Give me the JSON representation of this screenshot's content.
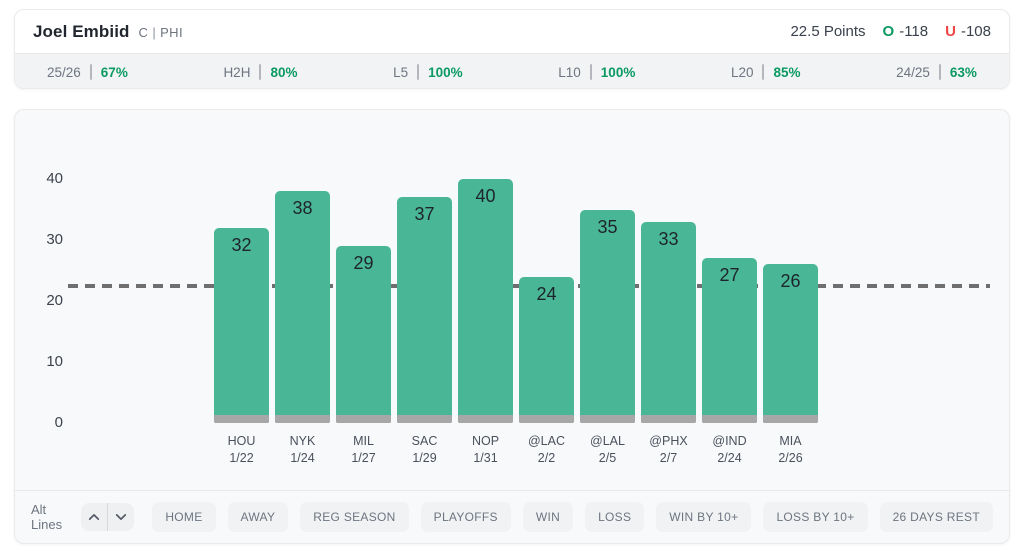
{
  "header": {
    "player_name": "Joel Embiid",
    "position": "C",
    "separator": "|",
    "team": "PHI",
    "line_label": "22.5 Points",
    "over_label": "O",
    "over_odds": "-118",
    "under_label": "U",
    "under_odds": "-108"
  },
  "stats": [
    {
      "label": "25/26",
      "value": "67%"
    },
    {
      "label": "H2H",
      "value": "80%"
    },
    {
      "label": "L5",
      "value": "100%"
    },
    {
      "label": "L10",
      "value": "100%"
    },
    {
      "label": "L20",
      "value": "85%"
    },
    {
      "label": "24/25",
      "value": "63%"
    }
  ],
  "chart_data": {
    "type": "bar",
    "title": "",
    "xlabel": "",
    "ylabel": "",
    "categories": [
      "HOU 1/22",
      "NYK 1/24",
      "MIL 1/27",
      "SAC 1/29",
      "NOP 1/31",
      "@LAC 2/2",
      "@LAL 2/5",
      "@PHX 2/7",
      "@IND 2/24",
      "MIA 2/26"
    ],
    "games": [
      {
        "opponent": "HOU",
        "date": "1/22"
      },
      {
        "opponent": "NYK",
        "date": "1/24"
      },
      {
        "opponent": "MIL",
        "date": "1/27"
      },
      {
        "opponent": "SAC",
        "date": "1/29"
      },
      {
        "opponent": "NOP",
        "date": "1/31"
      },
      {
        "opponent": "@LAC",
        "date": "2/2"
      },
      {
        "opponent": "@LAL",
        "date": "2/5"
      },
      {
        "opponent": "@PHX",
        "date": "2/7"
      },
      {
        "opponent": "@IND",
        "date": "2/24"
      },
      {
        "opponent": "MIA",
        "date": "2/26"
      }
    ],
    "values": [
      32,
      38,
      29,
      37,
      40,
      24,
      35,
      33,
      27,
      26
    ],
    "line_value": 22.5,
    "yticks": [
      0,
      10,
      20,
      30,
      40
    ],
    "ylim": [
      0,
      45
    ],
    "grid": false,
    "legend": false,
    "bar_color": "#49b795",
    "bar_base_color": "#a7a7a7",
    "reference_line_color": "#6f6f6f"
  },
  "controls": {
    "alt_lines_label": "Alt Lines",
    "filters": [
      "HOME",
      "AWAY",
      "REG SEASON",
      "PLAYOFFS",
      "WIN",
      "LOSS",
      "WIN BY 10+",
      "LOSS BY 10+",
      "26 DAYS REST"
    ]
  },
  "colors": {
    "accent_green": "#0a9a62",
    "under_red": "#ee4747"
  }
}
